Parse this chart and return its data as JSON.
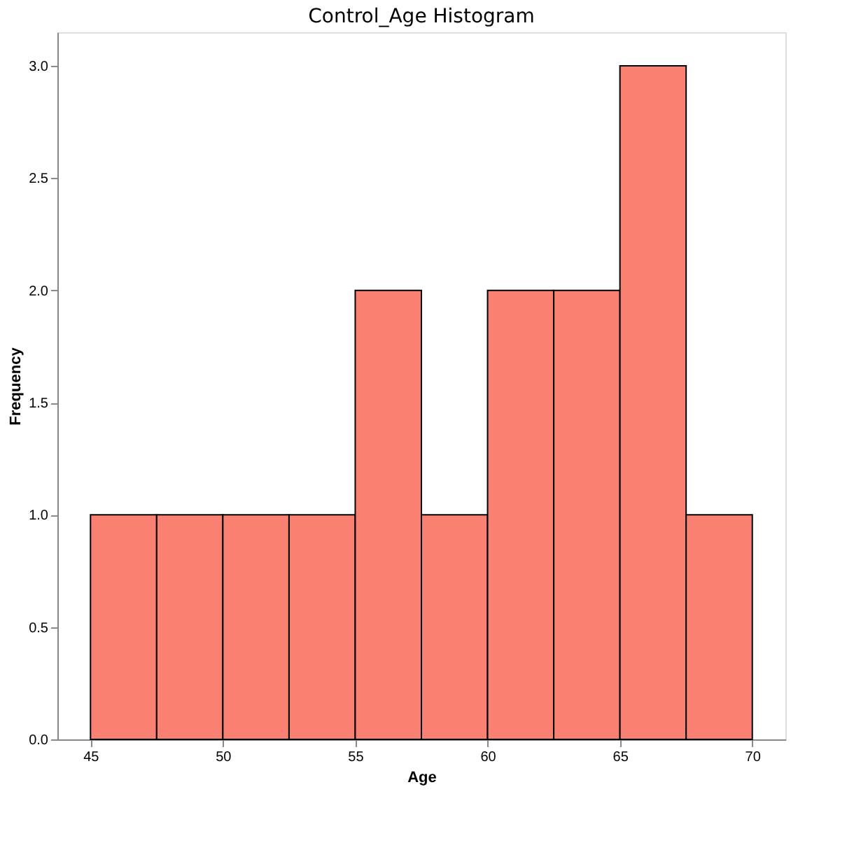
{
  "chart_data": {
    "type": "histogram",
    "title": "Control_Age Histogram",
    "xlabel": "Age",
    "ylabel": "Frequency",
    "bins": [
      45,
      47.5,
      50,
      52.5,
      55,
      57.5,
      60,
      62.5,
      65,
      67.5,
      70
    ],
    "values": [
      1,
      1,
      1,
      1,
      2,
      1,
      2,
      2,
      3,
      1
    ],
    "color": "#fa8072",
    "xlim": [
      43.75,
      71.25
    ],
    "xticks": [
      45,
      50,
      55,
      60,
      65,
      70
    ],
    "ylim": [
      0,
      3.15
    ],
    "yticks": [
      {
        "value": 0,
        "label": "0.0"
      },
      {
        "value": 0.5,
        "label": "0.5"
      },
      {
        "value": 1,
        "label": "1.0"
      },
      {
        "value": 1.5,
        "label": "1.5"
      },
      {
        "value": 2,
        "label": "2.0"
      },
      {
        "value": 2.5,
        "label": "2.5"
      },
      {
        "value": 3,
        "label": "3.0"
      }
    ],
    "grid": false
  }
}
